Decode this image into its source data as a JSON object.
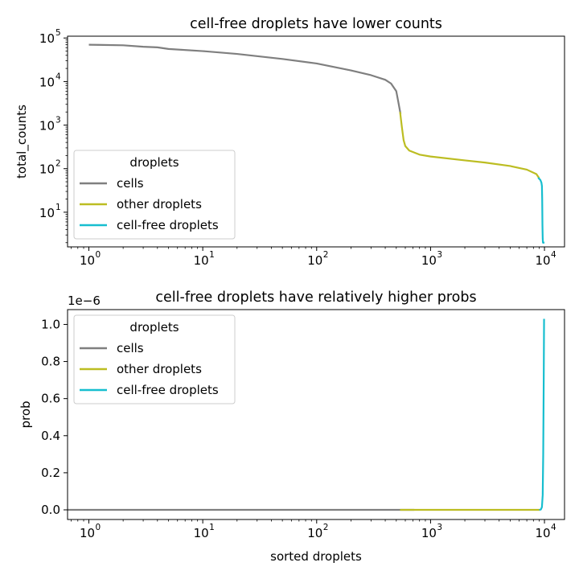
{
  "chart_data": [
    {
      "type": "line",
      "title": "cell-free droplets have lower counts",
      "xlabel": "",
      "ylabel": "total_counts",
      "xscale": "log",
      "yscale": "log",
      "xlim": [
        0.65,
        15000
      ],
      "ylim": [
        1.6,
        110000
      ],
      "xticks": [
        1,
        10,
        100,
        1000,
        10000
      ],
      "xtick_labels": [
        "10",
        "10",
        "10",
        "10",
        "10"
      ],
      "xtick_exponents": [
        "0",
        "1",
        "2",
        "3",
        "4"
      ],
      "yticks": [
        10,
        100,
        1000,
        10000,
        100000
      ],
      "ytick_labels": [
        "10",
        "10",
        "10",
        "10",
        "10"
      ],
      "ytick_exponents": [
        "1",
        "2",
        "3",
        "4",
        "5"
      ],
      "grid": false,
      "legend": {
        "title": "droplets",
        "position": "lower-left",
        "entries": [
          "cells",
          "other droplets",
          "cell-free droplets"
        ]
      },
      "series": [
        {
          "name": "cells",
          "color": "#7f7f7f",
          "points": [
            [
              1,
              70000
            ],
            [
              2,
              68000
            ],
            [
              3,
              63000
            ],
            [
              4,
              61000
            ],
            [
              5,
              56000
            ],
            [
              10,
              50000
            ],
            [
              20,
              43000
            ],
            [
              50,
              33000
            ],
            [
              100,
              26000
            ],
            [
              200,
              18000
            ],
            [
              300,
              14000
            ],
            [
              400,
              11000
            ],
            [
              450,
              9000
            ],
            [
              500,
              6000
            ],
            [
              520,
              3500
            ],
            [
              545,
              1800
            ]
          ]
        },
        {
          "name": "other droplets",
          "color": "#bcbd22",
          "points": [
            [
              540,
              2000
            ],
            [
              560,
              900
            ],
            [
              580,
              450
            ],
            [
              600,
              330
            ],
            [
              650,
              260
            ],
            [
              800,
              210
            ],
            [
              1000,
              190
            ],
            [
              2000,
              155
            ],
            [
              3000,
              138
            ],
            [
              5000,
              115
            ],
            [
              7000,
              95
            ],
            [
              8500,
              75
            ],
            [
              9000,
              60
            ]
          ]
        },
        {
          "name": "cell-free droplets",
          "color": "#17becf",
          "points": [
            [
              8800,
              62
            ],
            [
              9200,
              55
            ],
            [
              9400,
              48
            ],
            [
              9500,
              40
            ],
            [
              9550,
              20
            ],
            [
              9600,
              5
            ],
            [
              9650,
              2.5
            ],
            [
              9700,
              2
            ],
            [
              10000,
              2
            ]
          ]
        }
      ]
    },
    {
      "type": "line",
      "title": "cell-free droplets have relatively higher probs",
      "xlabel": "sorted droplets",
      "ylabel": "prob",
      "offset_label": "1e−6",
      "xscale": "log",
      "yscale": "linear",
      "xlim": [
        0.65,
        15000
      ],
      "ylim": [
        -5.2e-08,
        1.08e-06
      ],
      "xticks": [
        1,
        10,
        100,
        1000,
        10000
      ],
      "xtick_labels": [
        "10",
        "10",
        "10",
        "10",
        "10"
      ],
      "xtick_exponents": [
        "0",
        "1",
        "2",
        "3",
        "4"
      ],
      "yticks": [
        0,
        2e-07,
        4e-07,
        6e-07,
        8e-07,
        1e-06
      ],
      "ytick_labels": [
        "0.0",
        "0.2",
        "0.4",
        "0.6",
        "0.8",
        "1.0"
      ],
      "grid": false,
      "legend": {
        "title": "droplets",
        "position": "upper-left",
        "entries": [
          "cells",
          "other droplets",
          "cell-free droplets"
        ]
      },
      "series": [
        {
          "name": "cells",
          "color": "#7f7f7f",
          "points": [
            [
              0.65,
              0
            ],
            [
              720,
              0
            ]
          ]
        },
        {
          "name": "other droplets",
          "color": "#bcbd22",
          "points": [
            [
              540,
              0
            ],
            [
              9100,
              0
            ]
          ]
        },
        {
          "name": "cell-free droplets",
          "color": "#17becf",
          "points": [
            [
              9000,
              0
            ],
            [
              9300,
              2e-09
            ],
            [
              9500,
              1.5e-08
            ],
            [
              9650,
              8e-08
            ],
            [
              9750,
              3e-07
            ],
            [
              9850,
              7e-07
            ],
            [
              9920,
              1.03e-06
            ]
          ]
        }
      ]
    }
  ]
}
